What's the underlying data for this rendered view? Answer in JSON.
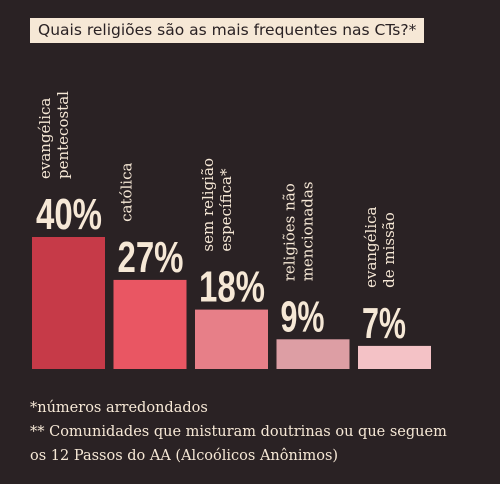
{
  "chart_data": {
    "type": "bar",
    "title": "Quais religiões são as mais frequentes nas CTs?*",
    "categories": [
      [
        "evangélica",
        "pentecostal"
      ],
      [
        "católica"
      ],
      [
        "sem religião",
        "específica*"
      ],
      [
        "religiões não",
        "mencionadas"
      ],
      [
        "evangélica",
        "de missão"
      ]
    ],
    "values": [
      40,
      27,
      18,
      9,
      7
    ],
    "value_labels": [
      "40%",
      "27%",
      "18%",
      "9%",
      "7%"
    ],
    "unit": "%",
    "colors": [
      "#c63a48",
      "#e95663",
      "#e77f88",
      "#dd9ea4",
      "#f4c2c6"
    ],
    "ylim": [
      0,
      40
    ],
    "grid": false,
    "legend": "none"
  },
  "notes": {
    "rounded": "*números arredondados",
    "footnote_line1": "** Comunidades que misturam doutrinas ou que seguem",
    "footnote_line2": "os 12 Passos do AA (Alcoólicos Anônimos)"
  }
}
